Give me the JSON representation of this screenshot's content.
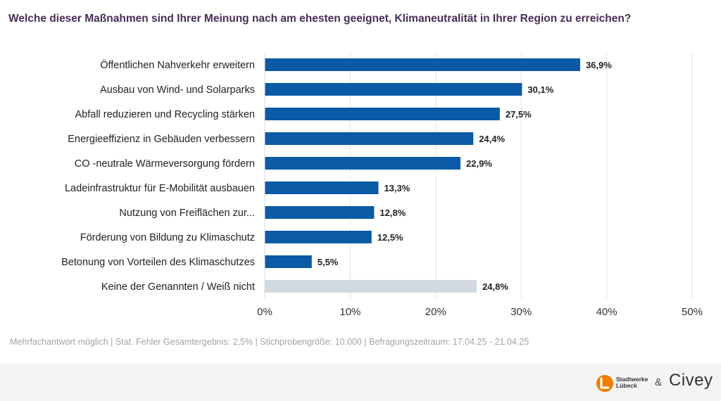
{
  "header": {
    "title": "Welche dieser Maßnahmen sind Ihrer Meinung nach am ehesten geeignet, Klimaneutralität in Ihrer Region zu erreichen?"
  },
  "chart_data": {
    "type": "bar",
    "orientation": "horizontal",
    "categories": [
      "Öffentlichen Nahverkehr erweitern",
      "Ausbau von Wind- und Solarparks",
      "Abfall reduzieren und Recycling stärken",
      "Energieeffizienz in Gebäuden verbessern",
      "CO  -neutrale Wärmeversorgung fördern",
      "Ladeinfrastruktur für E-Mobilität ausbauen",
      "Nutzung von Freiflächen zur...",
      "Förderung von Bildung zu Klimaschutz",
      "Betonung von Vorteilen des Klimaschutzes",
      "Keine der Genannten / Weiß nicht"
    ],
    "values": [
      36.9,
      30.1,
      27.5,
      24.4,
      22.9,
      13.3,
      12.8,
      12.5,
      5.5,
      24.8
    ],
    "value_labels": [
      "36,9%",
      "30,1%",
      "27,5%",
      "24,4%",
      "22,9%",
      "13,3%",
      "12,8%",
      "12,5%",
      "5,5%",
      "24,8%"
    ],
    "xlim": [
      0,
      50
    ],
    "xticks": [
      0,
      10,
      20,
      30,
      40,
      50
    ],
    "xtick_labels": [
      "0%",
      "10%",
      "20%",
      "30%",
      "40%",
      "50%"
    ],
    "grid": true,
    "colors": {
      "main": "#0a5aa6",
      "neutral": "#d3d9e1"
    },
    "neutral_category_index": 9
  },
  "footnote": "Mehrfachantwort möglich | Stat. Fehler Gesamtergebnis: 2,5% | Stichprobengröße: 10.000 | Befragungszeitraum: 17.04.25 - 21.04.25",
  "branding": {
    "stadtwerke_line1": "Stadtwerke",
    "stadtwerke_line2": "Lübeck",
    "ampersand": "&",
    "civey": "Civey",
    "stadtwerke_color": "#f07d00"
  }
}
